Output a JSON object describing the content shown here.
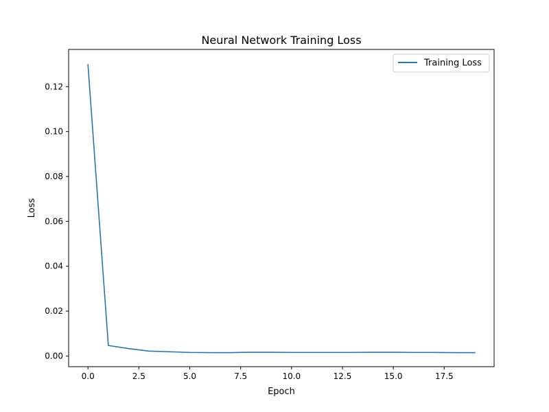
{
  "chart_data": {
    "type": "line",
    "title": "Neural Network Training Loss",
    "xlabel": "Epoch",
    "ylabel": "Loss",
    "xlim": [
      -0.95,
      19.95
    ],
    "ylim": [
      -0.00475,
      0.1366
    ],
    "x_ticks": [
      0.0,
      2.5,
      5.0,
      7.5,
      10.0,
      12.5,
      15.0,
      17.5
    ],
    "x_tick_labels": [
      "0.0",
      "2.5",
      "5.0",
      "7.5",
      "10.0",
      "12.5",
      "15.0",
      "17.5"
    ],
    "y_ticks": [
      0.0,
      0.02,
      0.04,
      0.06,
      0.08,
      0.1,
      0.12
    ],
    "y_tick_labels": [
      "0.00",
      "0.02",
      "0.04",
      "0.06",
      "0.08",
      "0.10",
      "0.12"
    ],
    "grid": false,
    "legend_position": "top-right",
    "series": [
      {
        "name": "Training Loss",
        "color": "#1f77b4",
        "x": [
          0,
          1,
          2,
          3,
          4,
          5,
          6,
          7,
          8,
          9,
          10,
          11,
          12,
          13,
          14,
          15,
          16,
          17,
          18,
          19
        ],
        "y": [
          0.1298,
          0.0047,
          0.0033,
          0.0022,
          0.0019,
          0.0016,
          0.0015,
          0.0015,
          0.0017,
          0.0017,
          0.0016,
          0.0016,
          0.0016,
          0.0016,
          0.0017,
          0.0017,
          0.0016,
          0.0016,
          0.0015,
          0.0015
        ]
      }
    ]
  }
}
